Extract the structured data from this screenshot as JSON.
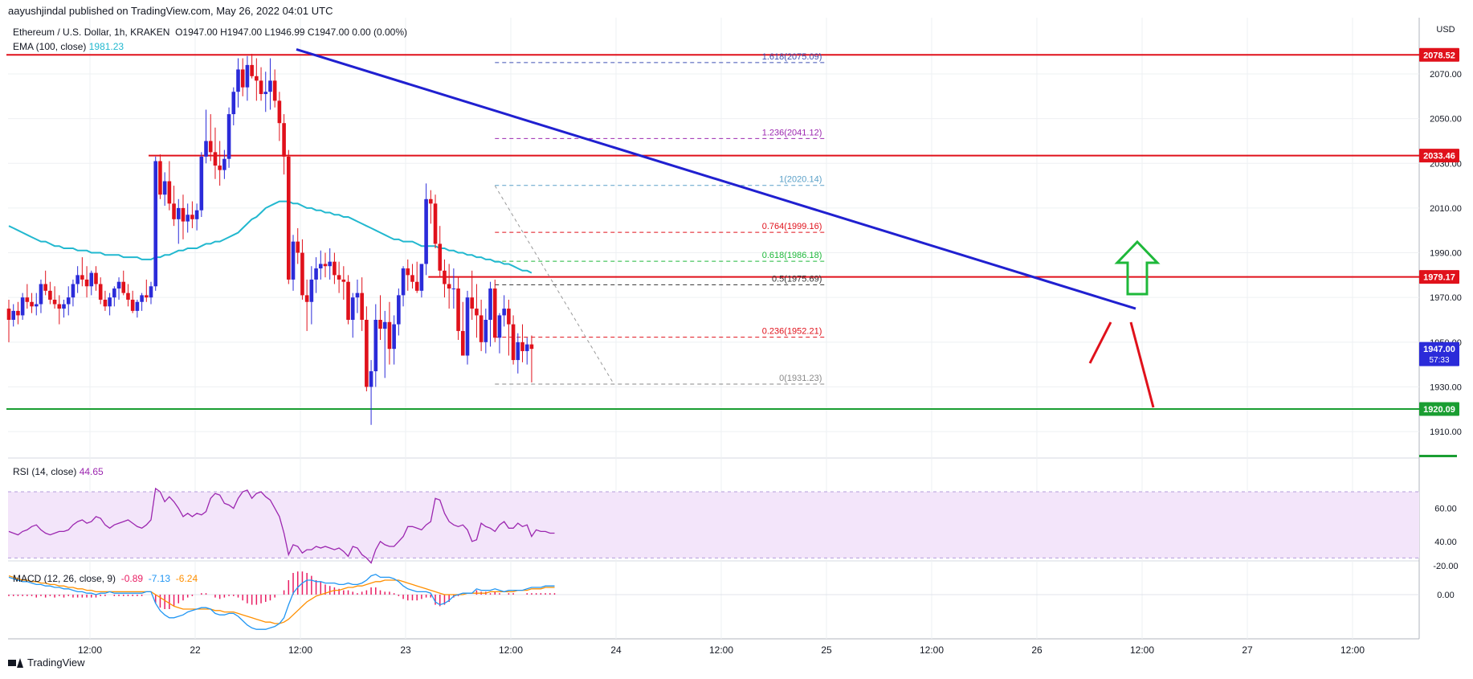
{
  "header": {
    "publisher": "aayushjindal published on TradingView.com, May 26, 2022 04:01 UTC",
    "symbol": "Ethereum / U.S. Dollar, 1h, KRAKEN",
    "ohlc": "O1947.00  H1947.00  L1946.99  C1947.00  0.00 (0.00%)",
    "ema_label": "EMA (100, close)",
    "ema_value": "1981.23",
    "currency": "USD"
  },
  "footer": {
    "brand": "TradingView"
  },
  "colors": {
    "up": "#2b2bd9",
    "down": "#e0111b",
    "ema": "#22b8cf",
    "trendline": "#2020d0",
    "resistance": "#e0111b",
    "support": "#1a9e32",
    "fib": "#7b5cd6",
    "rsi": "#9c27b0",
    "rsi_band": "#f3e5fa",
    "macd": "#2196f3",
    "signal": "#ff8f00",
    "hist": "#e91e63",
    "arrow_green": "#1eb83a",
    "arrow_red": "#e0111b"
  },
  "chart_data": {
    "type": "candlestick",
    "x_tick_labels": [
      "12:00",
      "22",
      "12:00",
      "23",
      "12:00",
      "24",
      "12:00",
      "25",
      "12:00",
      "26",
      "12:00",
      "27",
      "12:00"
    ],
    "y_tick_labels": [
      "2070.00",
      "2050.00",
      "2030.00",
      "2010.00",
      "1990.00",
      "1970.00",
      "1950.00",
      "1930.00",
      "1910.00"
    ],
    "ylim": [
      1900,
      2085
    ],
    "price_badges": [
      {
        "value": 2078.52,
        "label": "2078.52",
        "color": "#e0111b"
      },
      {
        "value": 2033.46,
        "label": "2033.46",
        "color": "#e0111b"
      },
      {
        "value": 1979.17,
        "label": "1979.17",
        "color": "#e0111b"
      },
      {
        "value": 1947.0,
        "label": "1947.00",
        "sub": "57:33",
        "color": "#2b2bd9"
      },
      {
        "value": 1920.09,
        "label": "1920.09",
        "color": "#1a9e32"
      }
    ],
    "horizontal_lines": [
      {
        "value": 2078.52,
        "color": "#e0111b",
        "from_index": 0
      },
      {
        "value": 2033.46,
        "color": "#e0111b",
        "from_index": 31
      },
      {
        "value": 1979.17,
        "color": "#e0111b",
        "from_index": 92
      },
      {
        "value": 1920.09,
        "color": "#1a9e32",
        "from_index": 0
      }
    ],
    "fib_levels": [
      {
        "ratio": "1.618",
        "value": 2075.09,
        "label": "1.618(2075.09)",
        "color": "#3f51b5"
      },
      {
        "ratio": "1.236",
        "value": 2041.12,
        "label": "1.236(2041.12)",
        "color": "#9c27b0"
      },
      {
        "ratio": "1",
        "value": 2020.14,
        "label": "1(2020.14)",
        "color": "#5aa0c8"
      },
      {
        "ratio": "0.764",
        "value": 1999.16,
        "label": "0.764(1999.16)",
        "color": "#e0111b"
      },
      {
        "ratio": "0.618",
        "value": 1986.18,
        "label": "0.618(1986.18)",
        "color": "#1eb83a"
      },
      {
        "ratio": "0.5",
        "value": 1975.69,
        "label": "0.5(1975.69)",
        "color": "#333333"
      },
      {
        "ratio": "0.236",
        "value": 1952.21,
        "label": "0.236(1952.21)",
        "color": "#e0111b"
      },
      {
        "ratio": "0",
        "value": 1931.23,
        "label": "0(1931.23)",
        "color": "#888888"
      }
    ],
    "candles": [
      [
        1965,
        1969,
        1950,
        1960
      ],
      [
        1960,
        1967,
        1957,
        1964
      ],
      [
        1964,
        1968,
        1958,
        1962
      ],
      [
        1962,
        1972,
        1960,
        1970
      ],
      [
        1970,
        1976,
        1965,
        1968
      ],
      [
        1968,
        1972,
        1963,
        1966
      ],
      [
        1966,
        1972,
        1962,
        1967
      ],
      [
        1967,
        1978,
        1963,
        1976
      ],
      [
        1976,
        1982,
        1971,
        1973
      ],
      [
        1973,
        1977,
        1967,
        1969
      ],
      [
        1969,
        1975,
        1965,
        1967
      ],
      [
        1967,
        1971,
        1958,
        1965
      ],
      [
        1965,
        1969,
        1961,
        1967
      ],
      [
        1967,
        1975,
        1962,
        1970
      ],
      [
        1970,
        1978,
        1966,
        1976
      ],
      [
        1976,
        1984,
        1972,
        1980
      ],
      [
        1980,
        1988,
        1975,
        1978
      ],
      [
        1978,
        1984,
        1970,
        1975
      ],
      [
        1975,
        1982,
        1971,
        1981
      ],
      [
        1981,
        1984,
        1973,
        1976
      ],
      [
        1976,
        1979,
        1967,
        1969
      ],
      [
        1969,
        1973,
        1964,
        1966
      ],
      [
        1966,
        1972,
        1962,
        1970
      ],
      [
        1970,
        1975,
        1966,
        1974
      ],
      [
        1974,
        1979,
        1969,
        1977
      ],
      [
        1977,
        1982,
        1971,
        1972
      ],
      [
        1972,
        1976,
        1966,
        1969
      ],
      [
        1969,
        1973,
        1963,
        1964
      ],
      [
        1964,
        1969,
        1961,
        1968
      ],
      [
        1968,
        1972,
        1964,
        1971
      ],
      [
        1971,
        1978,
        1968,
        1970
      ],
      [
        1970,
        1977,
        1967,
        1975
      ],
      [
        1975,
        2033,
        1973,
        2031
      ],
      [
        2031,
        2034,
        2014,
        2016
      ],
      [
        2016,
        2026,
        2011,
        2022
      ],
      [
        2022,
        2031,
        2009,
        2012
      ],
      [
        2012,
        2020,
        2002,
        2005
      ],
      [
        2005,
        2014,
        1994,
        2010
      ],
      [
        2010,
        2016,
        1996,
        2004
      ],
      [
        2004,
        2012,
        1999,
        2007
      ],
      [
        2007,
        2013,
        2001,
        2005
      ],
      [
        2005,
        2012,
        2000,
        2009
      ],
      [
        2009,
        2035,
        2006,
        2033
      ],
      [
        2033,
        2054,
        2030,
        2040
      ],
      [
        2040,
        2052,
        2031,
        2035
      ],
      [
        2035,
        2046,
        2023,
        2029
      ],
      [
        2029,
        2040,
        2020,
        2027
      ],
      [
        2027,
        2036,
        2023,
        2032
      ],
      [
        2032,
        2055,
        2028,
        2052
      ],
      [
        2052,
        2064,
        2047,
        2062
      ],
      [
        2062,
        2077,
        2055,
        2072
      ],
      [
        2072,
        2077,
        2060,
        2064
      ],
      [
        2064,
        2078,
        2058,
        2074
      ],
      [
        2074,
        2079,
        2068,
        2069
      ],
      [
        2069,
        2077,
        2058,
        2067
      ],
      [
        2067,
        2073,
        2058,
        2061
      ],
      [
        2061,
        2071,
        2053,
        2062
      ],
      [
        2062,
        2077,
        2054,
        2067
      ],
      [
        2067,
        2072,
        2055,
        2058
      ],
      [
        2058,
        2062,
        2040,
        2048
      ],
      [
        2048,
        2052,
        2025,
        2033
      ],
      [
        2033,
        2036,
        1976,
        1978
      ],
      [
        1978,
        1998,
        1973,
        1995
      ],
      [
        1995,
        2001,
        1985,
        1990
      ],
      [
        1990,
        1996,
        1969,
        1971
      ],
      [
        1971,
        1978,
        1955,
        1968
      ],
      [
        1968,
        1984,
        1958,
        1978
      ],
      [
        1978,
        1988,
        1972,
        1983
      ],
      [
        1983,
        1991,
        1978,
        1985
      ],
      [
        1985,
        1990,
        1979,
        1984
      ],
      [
        1984,
        1992,
        1978,
        1986
      ],
      [
        1986,
        1990,
        1976,
        1980
      ],
      [
        1980,
        1986,
        1972,
        1978
      ],
      [
        1978,
        1984,
        1969,
        1977
      ],
      [
        1977,
        1980,
        1958,
        1960
      ],
      [
        1960,
        1972,
        1952,
        1970
      ],
      [
        1970,
        1978,
        1963,
        1972
      ],
      [
        1972,
        1979,
        1955,
        1960
      ],
      [
        1960,
        1966,
        1928,
        1930
      ],
      [
        1930,
        1942,
        1913,
        1937
      ],
      [
        1937,
        1967,
        1930,
        1960
      ],
      [
        1960,
        1971,
        1951,
        1956
      ],
      [
        1956,
        1964,
        1934,
        1959
      ],
      [
        1959,
        1968,
        1940,
        1947
      ],
      [
        1947,
        1962,
        1940,
        1958
      ],
      [
        1958,
        1974,
        1953,
        1971
      ],
      [
        1971,
        1984,
        1966,
        1983
      ],
      [
        1983,
        1987,
        1973,
        1980
      ],
      [
        1980,
        1985,
        1974,
        1977
      ],
      [
        1977,
        1986,
        1972,
        1973
      ],
      [
        1973,
        1985,
        1970,
        1985
      ],
      [
        1985,
        2021,
        1980,
        2014
      ],
      [
        2014,
        2018,
        2003,
        2012
      ],
      [
        2012,
        2016,
        1992,
        1994
      ],
      [
        1994,
        2002,
        1979,
        1982
      ],
      [
        1982,
        1987,
        1970,
        1976
      ],
      [
        1976,
        1985,
        1965,
        1974
      ],
      [
        1974,
        1983,
        1965,
        1974
      ],
      [
        1974,
        1979,
        1951,
        1955
      ],
      [
        1955,
        1968,
        1944,
        1944
      ],
      [
        1944,
        1973,
        1940,
        1970
      ],
      [
        1970,
        1982,
        1960,
        1965
      ],
      [
        1965,
        1976,
        1952,
        1962
      ],
      [
        1962,
        1969,
        1946,
        1950
      ],
      [
        1950,
        1965,
        1945,
        1960
      ],
      [
        1960,
        1977,
        1948,
        1974
      ],
      [
        1974,
        1978,
        1950,
        1952
      ],
      [
        1952,
        1963,
        1945,
        1962
      ],
      [
        1962,
        1971,
        1957,
        1965
      ],
      [
        1965,
        1969,
        1944,
        1958
      ],
      [
        1958,
        1962,
        1940,
        1942
      ],
      [
        1942,
        1954,
        1936,
        1950
      ],
      [
        1950,
        1958,
        1941,
        1946
      ],
      [
        1946,
        1952,
        1940,
        1949
      ],
      [
        1949,
        1953,
        1932,
        1947
      ]
    ],
    "ema_100": [
      2002,
      2001,
      2000,
      1999,
      1998,
      1997,
      1996,
      1995,
      1995,
      1994,
      1993,
      1993,
      1992,
      1992,
      1992,
      1991,
      1991,
      1991,
      1990,
      1990,
      1990,
      1989,
      1989,
      1989,
      1989,
      1988,
      1988,
      1988,
      1988,
      1987,
      1987,
      1987,
      1988,
      1988,
      1989,
      1989,
      1990,
      1991,
      1991,
      1992,
      1992,
      1992,
      1993,
      1994,
      1994,
      1995,
      1995,
      1996,
      1997,
      1998,
      1999,
      2001,
      2003,
      2005,
      2006,
      2008,
      2010,
      2011,
      2012,
      2013,
      2013,
      2013,
      2012,
      2012,
      2011,
      2010,
      2010,
      2009,
      2009,
      2008,
      2008,
      2007,
      2007,
      2006,
      2006,
      2005,
      2004,
      2003,
      2002,
      2001,
      2000,
      1999,
      1998,
      1997,
      1996,
      1996,
      1995,
      1995,
      1995,
      1994,
      1993,
      1993,
      1993,
      1993,
      1992,
      1992,
      1991,
      1991,
      1990,
      1990,
      1989,
      1989,
      1988,
      1988,
      1987,
      1987,
      1986,
      1986,
      1985,
      1985,
      1984,
      1983,
      1982,
      1982,
      1981
    ],
    "trendline": {
      "from": {
        "index": 62,
        "value": 2081
      },
      "to": {
        "index": 141,
        "value": 1965
      }
    },
    "fib_range": {
      "from_index": 106,
      "to_index": 178
    },
    "fib_diag": {
      "from": {
        "index": 106,
        "value": 2020
      },
      "to": {
        "index": 132,
        "value": 1931
      }
    },
    "rsi": {
      "label": "RSI (14, close)",
      "value_label": "44.65",
      "levels": [
        70,
        30
      ],
      "ylim": [
        24,
        76
      ],
      "tick_labels": [
        "60.00",
        "40.00"
      ],
      "values": [
        46,
        45,
        44,
        46,
        47,
        49,
        50,
        47,
        45,
        44,
        45,
        46,
        46,
        47,
        50,
        52,
        53,
        51,
        52,
        55,
        54,
        50,
        48,
        50,
        51,
        52,
        53,
        51,
        49,
        48,
        50,
        53,
        72,
        70,
        64,
        67,
        64,
        60,
        55,
        57,
        55,
        57,
        56,
        58,
        66,
        69,
        68,
        63,
        62,
        60,
        66,
        70,
        71,
        66,
        69,
        70,
        67,
        65,
        60,
        55,
        45,
        32,
        38,
        37,
        33,
        35,
        35,
        37,
        36,
        37,
        36,
        35,
        36,
        34,
        31,
        37,
        36,
        32,
        30,
        27,
        35,
        40,
        38,
        37,
        37,
        40,
        43,
        49,
        49,
        48,
        47,
        50,
        52,
        66,
        65,
        57,
        52,
        50,
        49,
        50,
        47,
        40,
        41,
        51,
        49,
        48,
        46,
        50,
        52,
        48,
        48,
        51,
        49,
        50,
        43,
        47,
        46,
        46,
        45,
        45
      ]
    },
    "macd": {
      "label": "MACD (12, 26, close, 9)",
      "values_label": [
        "-0.89",
        "-7.13",
        "-6.24"
      ],
      "tick_labels": [
        "0.00",
        "-20.00"
      ],
      "ylim": [
        -24,
        28
      ],
      "macd": [
        -12,
        -11,
        -10,
        -9,
        -9,
        -8,
        -7,
        -7,
        -6,
        -6,
        -5,
        -5,
        -4,
        -4,
        -3,
        -2,
        -2,
        -1,
        -1,
        0,
        -1,
        -1,
        -2,
        -1,
        -1,
        -1,
        -1,
        -1,
        -1,
        -1,
        -2,
        -2,
        6,
        11,
        14,
        16,
        16,
        15,
        14,
        12,
        11,
        10,
        9,
        9,
        10,
        13,
        14,
        14,
        13,
        13,
        15,
        18,
        21,
        23,
        24,
        24,
        24,
        23,
        22,
        20,
        16,
        7,
        -1,
        -5,
        -8,
        -10,
        -10,
        -9,
        -9,
        -8,
        -8,
        -8,
        -7,
        -7,
        -8,
        -7,
        -7,
        -8,
        -10,
        -13,
        -14,
        -12,
        -12,
        -12,
        -11,
        -9,
        -6,
        -4,
        -3,
        -2,
        -2,
        -2,
        -1,
        5,
        7,
        6,
        4,
        1,
        0,
        -1,
        -1,
        -1,
        -4,
        -3,
        -3,
        -3,
        -4,
        -3,
        -2,
        -3,
        -3,
        -3,
        -3,
        -4,
        -5,
        -5,
        -5,
        -6,
        -6,
        -6
      ],
      "signal": [
        -13,
        -12,
        -11,
        -10,
        -10,
        -9,
        -9,
        -8,
        -8,
        -7,
        -7,
        -6,
        -6,
        -5,
        -5,
        -4,
        -4,
        -3,
        -3,
        -2,
        -2,
        -2,
        -2,
        -2,
        -2,
        -2,
        -2,
        -2,
        -2,
        -2,
        -2,
        -2,
        0,
        2,
        4,
        6,
        8,
        9,
        10,
        10,
        10,
        10,
        10,
        10,
        10,
        11,
        11,
        12,
        12,
        12,
        13,
        14,
        15,
        16,
        17,
        18,
        19,
        19,
        20,
        20,
        19,
        17,
        14,
        11,
        8,
        5,
        3,
        1,
        0,
        -1,
        -2,
        -3,
        -3,
        -4,
        -5,
        -5,
        -6,
        -6,
        -7,
        -8,
        -9,
        -9,
        -10,
        -10,
        -10,
        -10,
        -9,
        -8,
        -7,
        -6,
        -5,
        -4,
        -3,
        -2,
        -1,
        0,
        0,
        0,
        0,
        0,
        -1,
        -1,
        -1,
        -1,
        -1,
        -2,
        -2,
        -2,
        -2,
        -2,
        -2,
        -3,
        -3,
        -3,
        -4,
        -4,
        -4,
        -5,
        -5,
        -5
      ],
      "hist": [
        1,
        1,
        1,
        1,
        1,
        1,
        2,
        1,
        2,
        1,
        2,
        1,
        2,
        1,
        2,
        2,
        2,
        2,
        2,
        2,
        1,
        1,
        0,
        1,
        1,
        1,
        1,
        1,
        1,
        1,
        0,
        0,
        6,
        9,
        10,
        10,
        8,
        6,
        4,
        2,
        1,
        0,
        -1,
        -1,
        0,
        2,
        3,
        2,
        1,
        1,
        2,
        4,
        6,
        7,
        7,
        6,
        5,
        4,
        2,
        0,
        -3,
        -10,
        -15,
        -16,
        -16,
        -15,
        -13,
        -10,
        -9,
        -7,
        -6,
        -5,
        -4,
        -3,
        -3,
        -2,
        -1,
        -2,
        -3,
        -5,
        -5,
        -3,
        -2,
        -2,
        -1,
        1,
        3,
        4,
        4,
        4,
        3,
        2,
        2,
        7,
        8,
        7,
        5,
        2,
        1,
        0,
        0,
        0,
        -3,
        -2,
        -2,
        -1,
        -2,
        -1,
        0,
        -1,
        -1,
        0,
        0,
        -1,
        -1,
        -1,
        -1,
        -1,
        -1,
        -1
      ]
    }
  }
}
